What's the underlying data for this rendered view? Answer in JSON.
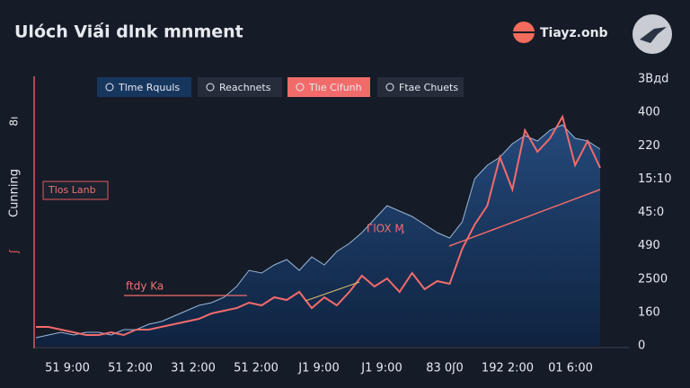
{
  "chart_data": {
    "type": "line",
    "title": "Ulóch Viấi dlnk mnment",
    "brand": "Tiayz.onb",
    "legend": [
      "Tlme Rquuls",
      "Reachnets",
      "Tlıe Cifunh",
      "Ftae Chuets"
    ],
    "y_axis_label": "Cunning",
    "side_marks": [
      "8ı",
      "ʃ"
    ],
    "box_label": "Tlos Lanb",
    "annotations": [
      "ГlOX Ӎ",
      "ftdy Ka"
    ],
    "x_labels": [
      "51 9:00",
      "51 2:00",
      "31 2:00",
      "51 2:00",
      "J1 9:00",
      "J1 9:00",
      "83 0ʃ0",
      "192 2:00",
      "01 6:00"
    ],
    "y_labels": [
      "3Bдd",
      "400",
      "220",
      "15:10",
      "45:0",
      "490",
      "2500",
      "160",
      "0"
    ],
    "ylim": [
      0,
      100
    ],
    "series": [
      {
        "name": "Tlme Rquuls",
        "color": "#9bb8d8",
        "fill": true,
        "values": [
          3,
          4,
          5,
          4,
          5,
          5,
          4,
          6,
          6,
          8,
          9,
          11,
          13,
          15,
          16,
          18,
          22,
          28,
          27,
          30,
          32,
          28,
          33,
          30,
          35,
          38,
          42,
          47,
          52,
          50,
          48,
          45,
          42,
          40,
          46,
          62,
          67,
          70,
          75,
          78,
          76,
          80,
          82,
          77,
          76,
          73
        ]
      },
      {
        "name": "Tlıe Cifunh",
        "color": "#f26b6b",
        "fill": false,
        "values": [
          7,
          7,
          6,
          5,
          4,
          4,
          5,
          4,
          6,
          6,
          7,
          8,
          9,
          10,
          12,
          13,
          14,
          16,
          15,
          18,
          17,
          20,
          14,
          18,
          15,
          20,
          26,
          22,
          25,
          20,
          27,
          21,
          24,
          23,
          36,
          45,
          52,
          70,
          58,
          80,
          72,
          77,
          85,
          67,
          76,
          66
        ]
      }
    ]
  }
}
